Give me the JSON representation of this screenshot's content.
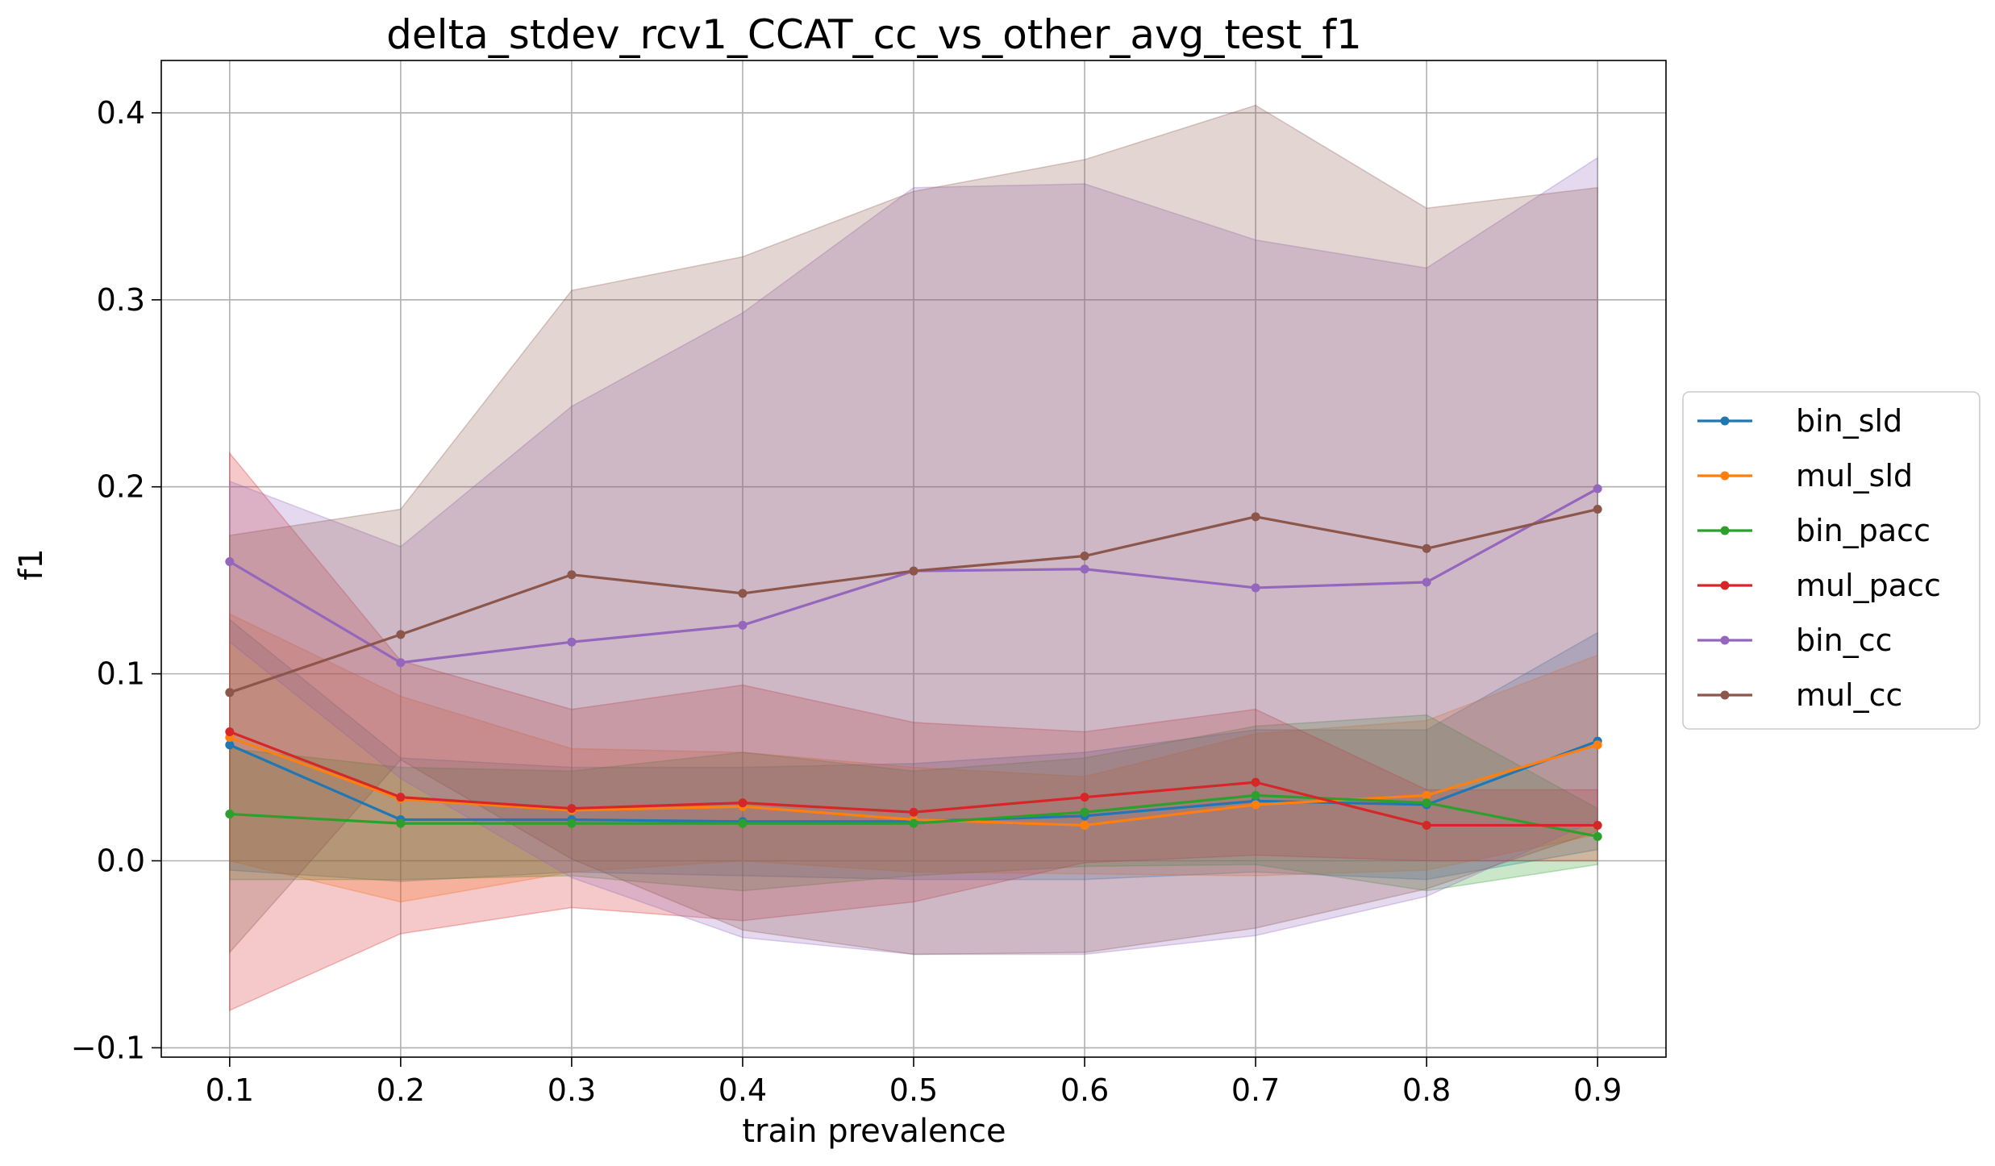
{
  "chart_data": {
    "type": "line",
    "title": "delta_stdev_rcv1_CCAT_cc_vs_other_avg_test_f1",
    "xlabel": "train prevalence",
    "ylabel": "f1",
    "x": [
      0.1,
      0.2,
      0.3,
      0.4,
      0.5,
      0.6,
      0.7,
      0.8,
      0.9
    ],
    "x_tick_labels": [
      "0.1",
      "0.2",
      "0.3",
      "0.4",
      "0.5",
      "0.6",
      "0.7",
      "0.8",
      "0.9"
    ],
    "xlim": [
      0.06,
      0.94
    ],
    "ylim": [
      -0.105,
      0.428
    ],
    "y_ticks": [
      -0.1,
      0.0,
      0.1,
      0.2,
      0.3,
      0.4
    ],
    "y_tick_labels": [
      "−0.1",
      "0.0",
      "0.1",
      "0.2",
      "0.3",
      "0.4"
    ],
    "grid": true,
    "legend_position": "right-outside",
    "series": [
      {
        "name": "bin_sld",
        "color": "#1f77b4",
        "values": [
          0.062,
          0.022,
          0.022,
          0.021,
          0.021,
          0.024,
          0.032,
          0.03,
          0.064
        ],
        "upper": [
          0.129,
          0.055,
          0.05,
          0.05,
          0.052,
          0.058,
          0.07,
          0.07,
          0.122
        ],
        "lower": [
          -0.005,
          -0.011,
          -0.006,
          -0.008,
          -0.01,
          -0.01,
          -0.006,
          -0.01,
          0.006
        ]
      },
      {
        "name": "mul_sld",
        "color": "#ff7f0e",
        "values": [
          0.066,
          0.033,
          0.027,
          0.029,
          0.022,
          0.019,
          0.03,
          0.035,
          0.062
        ],
        "upper": [
          0.132,
          0.088,
          0.06,
          0.058,
          0.05,
          0.045,
          0.068,
          0.075,
          0.11
        ],
        "lower": [
          0.0,
          -0.022,
          -0.006,
          0.0,
          -0.006,
          -0.007,
          -0.008,
          -0.005,
          0.014
        ]
      },
      {
        "name": "bin_pacc",
        "color": "#2ca02c",
        "values": [
          0.025,
          0.02,
          0.02,
          0.02,
          0.02,
          0.026,
          0.035,
          0.031,
          0.013
        ],
        "upper": [
          0.06,
          0.05,
          0.048,
          0.058,
          0.048,
          0.055,
          0.072,
          0.078,
          0.028
        ],
        "lower": [
          -0.01,
          -0.01,
          -0.008,
          -0.016,
          -0.008,
          -0.003,
          -0.002,
          -0.016,
          -0.002
        ]
      },
      {
        "name": "mul_pacc",
        "color": "#d62728",
        "values": [
          0.069,
          0.034,
          0.028,
          0.031,
          0.026,
          0.034,
          0.042,
          0.019,
          0.019
        ],
        "upper": [
          0.218,
          0.107,
          0.081,
          0.094,
          0.074,
          0.069,
          0.081,
          0.038,
          0.038
        ],
        "lower": [
          -0.08,
          -0.039,
          -0.025,
          -0.032,
          -0.022,
          -0.001,
          0.003,
          0.0,
          0.0
        ]
      },
      {
        "name": "bin_cc",
        "color": "#9467bd",
        "values": [
          0.16,
          0.106,
          0.117,
          0.126,
          0.155,
          0.156,
          0.146,
          0.149,
          0.199
        ],
        "upper": [
          0.203,
          0.168,
          0.243,
          0.293,
          0.36,
          0.362,
          0.332,
          0.317,
          0.376
        ],
        "lower": [
          0.117,
          0.044,
          -0.009,
          -0.041,
          -0.05,
          -0.05,
          -0.04,
          -0.019,
          0.022
        ]
      },
      {
        "name": "mul_cc",
        "color": "#8c564b",
        "values": [
          0.09,
          0.121,
          0.153,
          0.143,
          0.155,
          0.163,
          0.184,
          0.167,
          0.188
        ],
        "upper": [
          0.174,
          0.188,
          0.305,
          0.323,
          0.358,
          0.375,
          0.404,
          0.349,
          0.36
        ],
        "lower": [
          -0.049,
          0.054,
          0.001,
          -0.037,
          -0.05,
          -0.049,
          -0.036,
          -0.015,
          0.016
        ]
      }
    ]
  }
}
